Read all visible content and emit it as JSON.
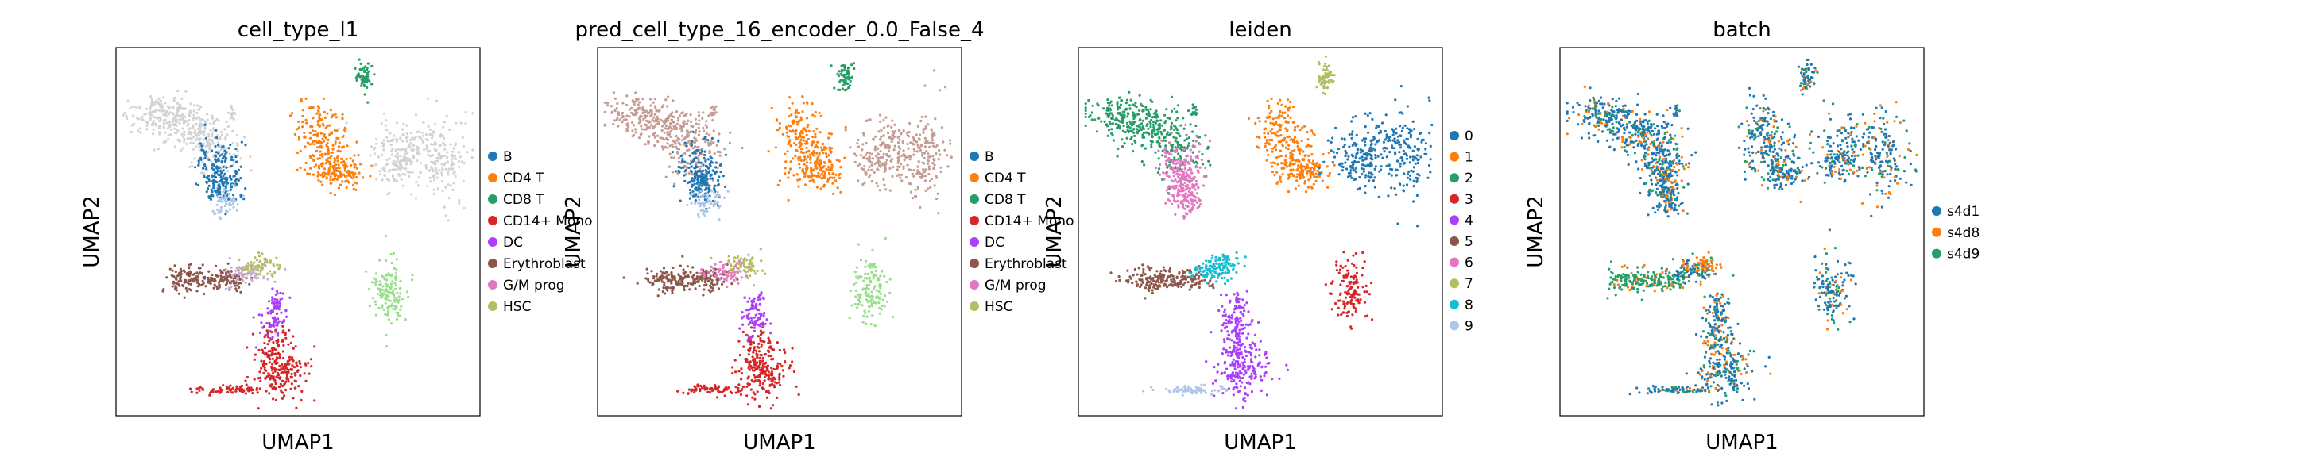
{
  "chart_data": [
    {
      "type": "scatter",
      "title": "cell_type_l1",
      "xlabel": "UMAP1",
      "ylabel": "UMAP2",
      "grid": false,
      "legend_position": "right",
      "series": [
        {
          "name": "B",
          "color": "#1f77b4"
        },
        {
          "name": "CD4 T",
          "color": "#ff7f0e"
        },
        {
          "name": "CD8 T",
          "color": "#279e68"
        },
        {
          "name": "CD14+ Mono",
          "color": "#d62728"
        },
        {
          "name": "DC",
          "color": "#aa40fc"
        },
        {
          "name": "Erythroblast",
          "color": "#8c564b"
        },
        {
          "name": "G/M prog",
          "color": "#e377c2"
        },
        {
          "name": "HSC",
          "color": "#b5bd61"
        }
      ]
    },
    {
      "type": "scatter",
      "title": "pred_cell_type_16_encoder_0.0_False_4",
      "xlabel": "UMAP1",
      "ylabel": "UMAP2",
      "grid": false,
      "legend_position": "right",
      "series": [
        {
          "name": "B",
          "color": "#1f77b4"
        },
        {
          "name": "CD4 T",
          "color": "#ff7f0e"
        },
        {
          "name": "CD8 T",
          "color": "#279e68"
        },
        {
          "name": "CD14+ Mono",
          "color": "#d62728"
        },
        {
          "name": "DC",
          "color": "#aa40fc"
        },
        {
          "name": "Erythroblast",
          "color": "#8c564b"
        },
        {
          "name": "G/M prog",
          "color": "#e377c2"
        },
        {
          "name": "HSC",
          "color": "#b5bd61"
        }
      ]
    },
    {
      "type": "scatter",
      "title": "leiden",
      "xlabel": "UMAP1",
      "ylabel": "UMAP2",
      "grid": false,
      "legend_position": "right",
      "series": [
        {
          "name": "0",
          "color": "#1f77b4"
        },
        {
          "name": "1",
          "color": "#ff7f0e"
        },
        {
          "name": "2",
          "color": "#279e68"
        },
        {
          "name": "3",
          "color": "#d62728"
        },
        {
          "name": "4",
          "color": "#aa40fc"
        },
        {
          "name": "5",
          "color": "#8c564b"
        },
        {
          "name": "6",
          "color": "#e377c2"
        },
        {
          "name": "7",
          "color": "#b5bd61"
        },
        {
          "name": "8",
          "color": "#17becf"
        },
        {
          "name": "9",
          "color": "#aec7e8"
        }
      ]
    },
    {
      "type": "scatter",
      "title": "batch",
      "xlabel": "UMAP1",
      "ylabel": "UMAP2",
      "grid": false,
      "legend_position": "right",
      "series": [
        {
          "name": "s4d1",
          "color": "#1f77b4"
        },
        {
          "name": "s4d8",
          "color": "#ff7f0e"
        },
        {
          "name": "s4d9",
          "color": "#279e68"
        }
      ]
    }
  ]
}
